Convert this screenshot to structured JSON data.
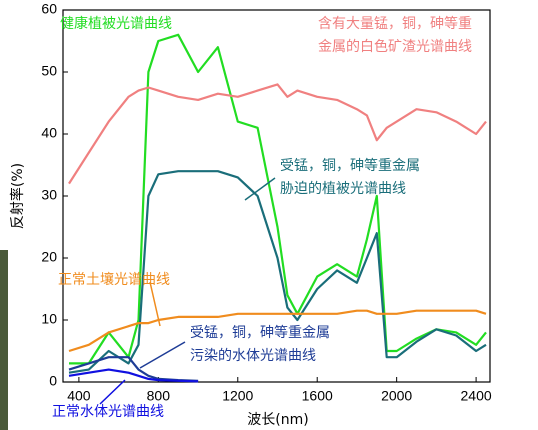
{
  "chart_data": {
    "type": "line",
    "x_label": "波长(nm)",
    "y_label": "反射率(%)",
    "xlim": [
      320,
      2470
    ],
    "xticks": [
      400,
      800,
      1200,
      1600,
      2000,
      2400
    ],
    "ylim": [
      0,
      60
    ],
    "yticks": [
      0,
      10,
      20,
      30,
      40,
      50,
      60
    ],
    "x": [
      350,
      450,
      550,
      650,
      700,
      750,
      800,
      900,
      1000,
      1100,
      1200,
      1300,
      1400,
      1450,
      1500,
      1600,
      1700,
      1800,
      1850,
      1900,
      1950,
      2000,
      2100,
      2200,
      2300,
      2400,
      2450
    ],
    "series": [
      {
        "name": [
          "健康植被光谱曲线"
        ],
        "color": "#22dd22",
        "values": [
          3,
          3,
          8,
          4,
          10,
          50,
          55,
          56,
          50,
          54,
          42,
          41,
          25,
          14,
          11,
          17,
          19,
          17,
          23,
          30,
          5,
          5,
          7,
          8.5,
          8,
          6,
          8
        ]
      },
      {
        "name": [
          "含有大量锰，铜，砷等重",
          "金属的白色矿渣光谱曲线"
        ],
        "color": "#f08080",
        "values": [
          32,
          37,
          42,
          46,
          47,
          47.5,
          47,
          46,
          45.5,
          46.5,
          46,
          47,
          48,
          46,
          47,
          46,
          45.5,
          44,
          43,
          39,
          41,
          42,
          44,
          43.5,
          42,
          40,
          42
        ]
      },
      {
        "name": [
          "受锰，铜，砷等重金属",
          "胁迫的植被光谱曲线"
        ],
        "color": "#1a6e7a",
        "values": [
          1.5,
          2,
          5,
          3,
          6,
          30,
          33.5,
          34,
          34,
          34,
          33,
          30,
          20,
          12,
          10,
          15,
          18,
          16,
          20,
          24,
          4,
          4,
          6.5,
          8.5,
          7.5,
          5,
          6
        ]
      },
      {
        "name": [
          "正常土壤光谱曲线"
        ],
        "color": "#f08c1e",
        "values": [
          5,
          6,
          8,
          9,
          9.5,
          9.5,
          10,
          10.5,
          10.5,
          10.5,
          11,
          11,
          11,
          11,
          11,
          11,
          11,
          11.5,
          11.5,
          11,
          11,
          11,
          11.5,
          11.5,
          11.5,
          11.5,
          11
        ]
      },
      {
        "name": [
          "受锰，铜，砷等重金属",
          "污染的水体光谱曲线"
        ],
        "color": "#1e3c96",
        "values": [
          2,
          3,
          4,
          4,
          2,
          1,
          0.5,
          0.3,
          0.2,
          null,
          null,
          null,
          null,
          null,
          null,
          null,
          null,
          null,
          null,
          null,
          null,
          null,
          null,
          null,
          null,
          null,
          null
        ]
      },
      {
        "name": [
          "正常水体光谱曲线"
        ],
        "color": "#1010e0",
        "values": [
          1,
          1.5,
          2,
          1.5,
          1,
          0.5,
          0.3,
          0.2,
          0.1,
          null,
          null,
          null,
          null,
          null,
          null,
          null,
          null,
          null,
          null,
          null,
          null,
          null,
          null,
          null,
          null,
          null,
          null
        ]
      }
    ]
  }
}
